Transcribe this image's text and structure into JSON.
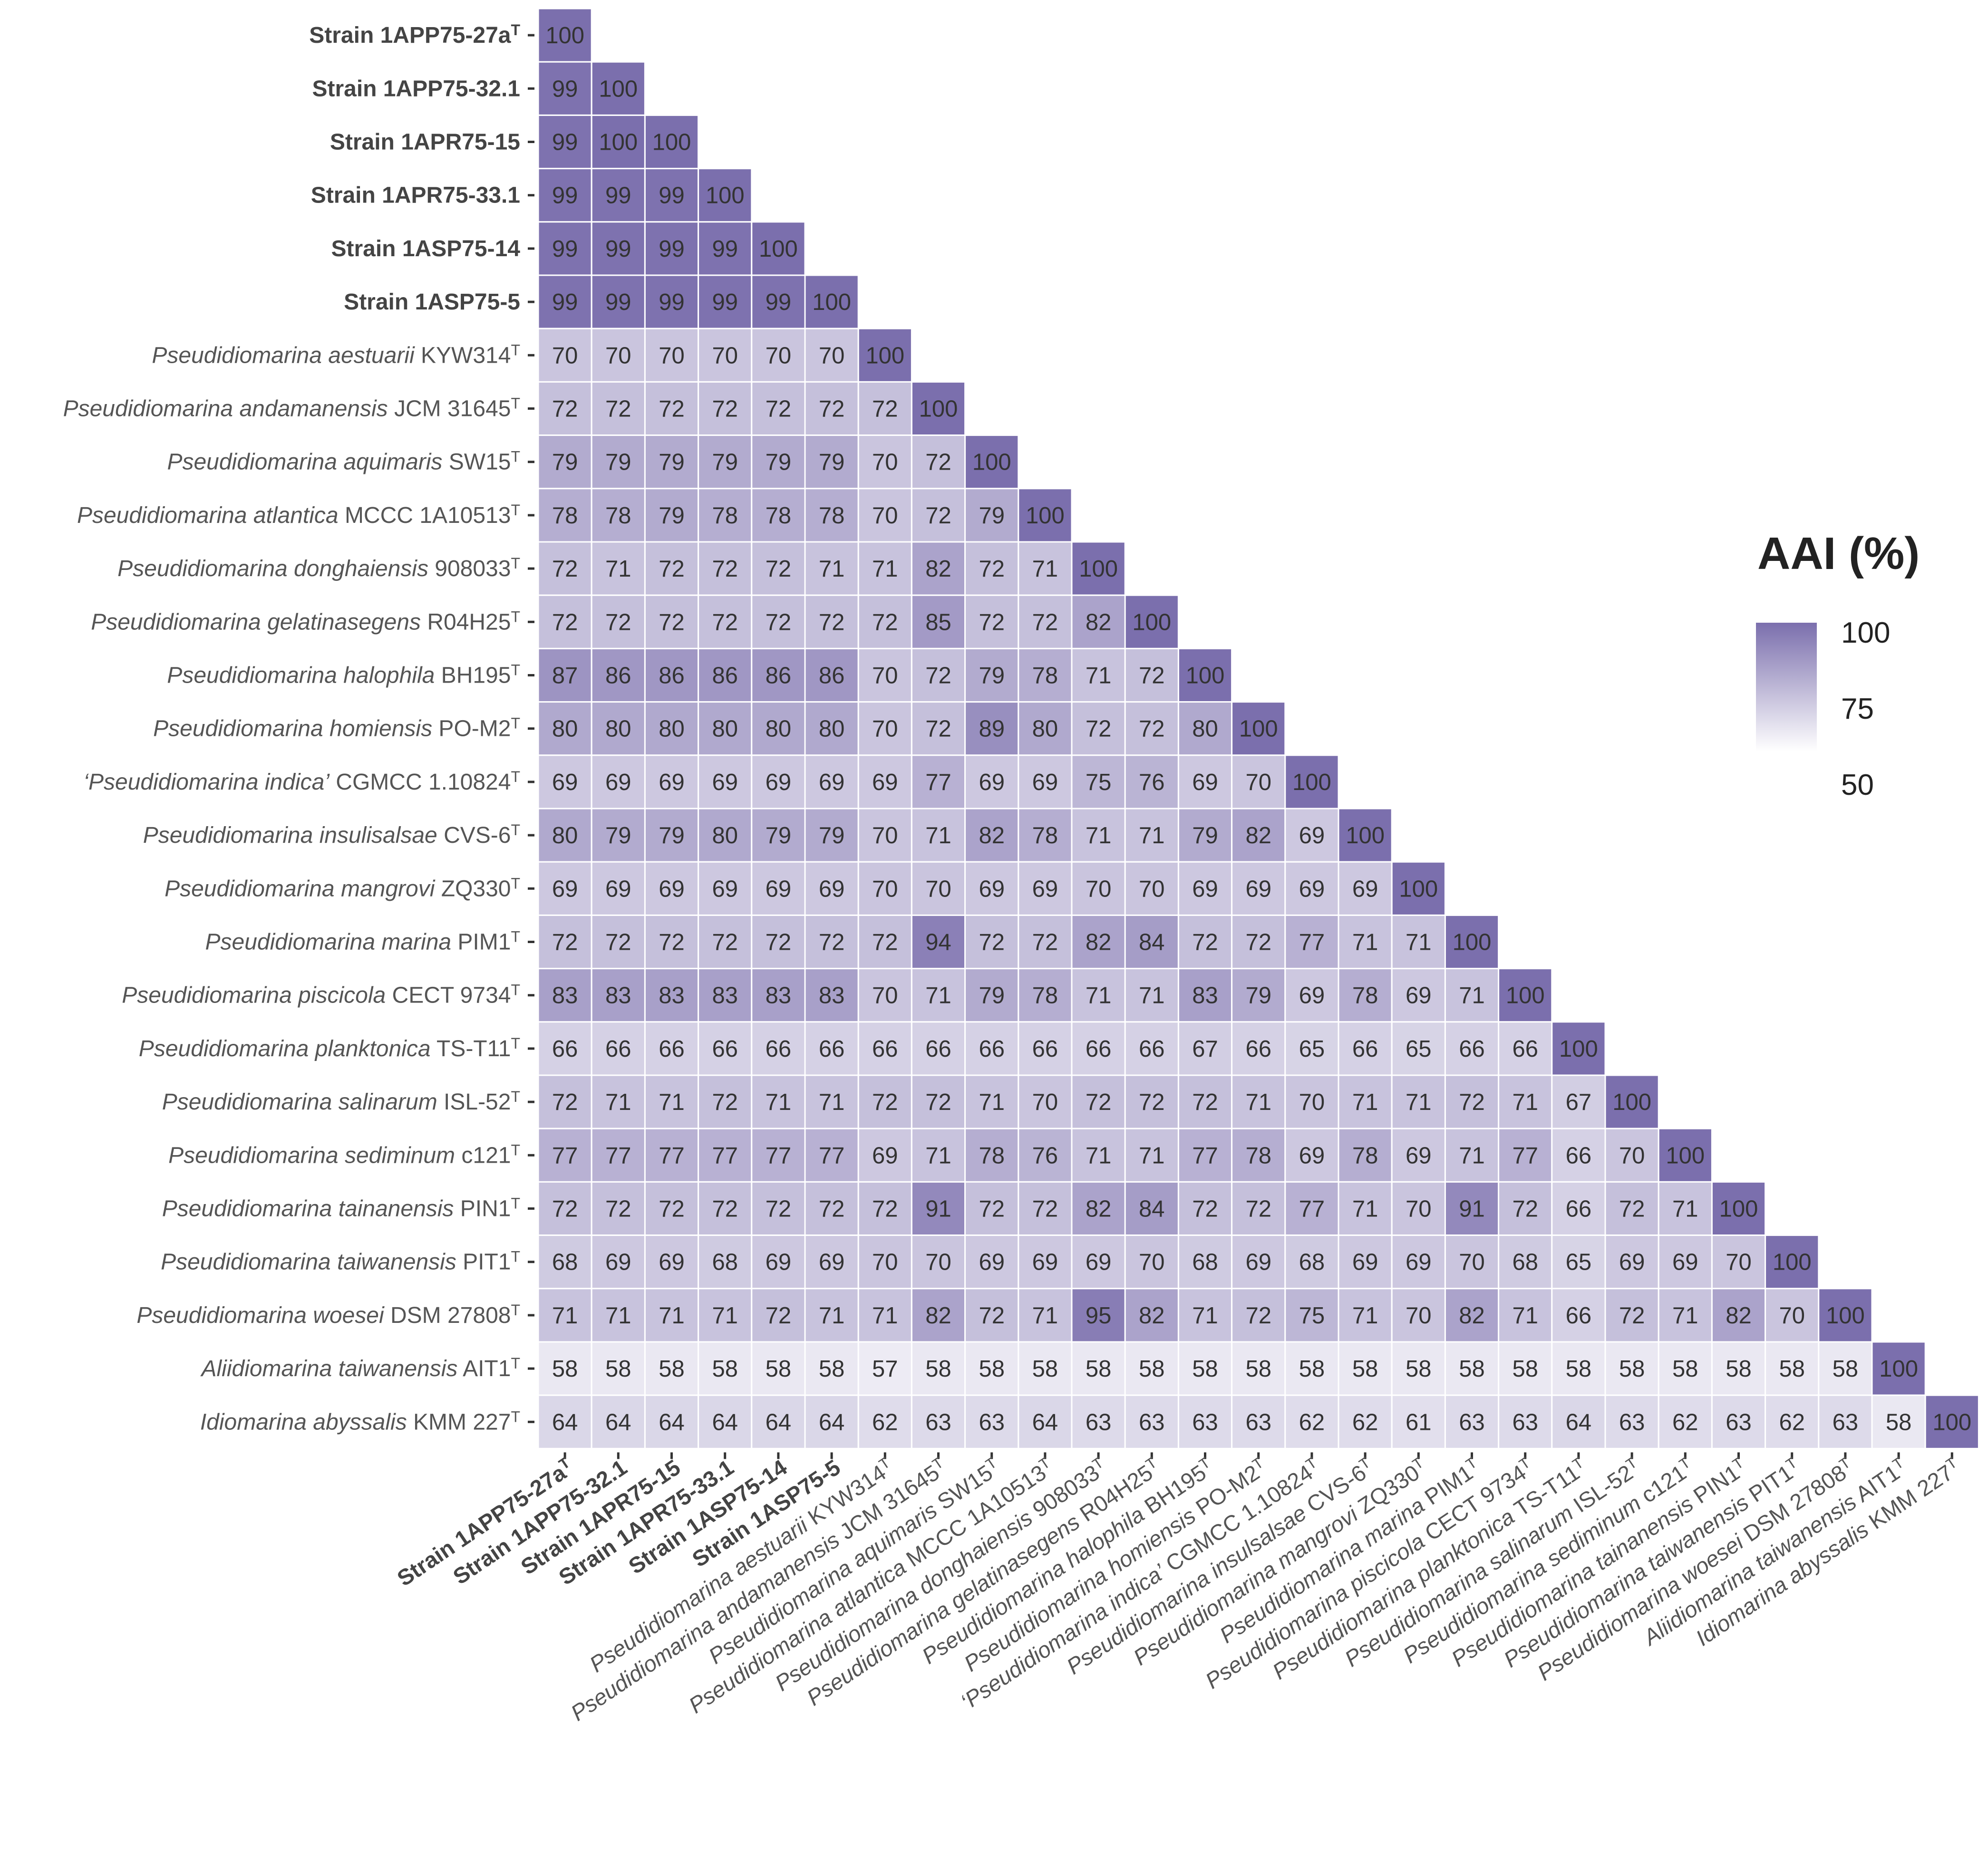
{
  "chart_data": {
    "type": "heatmap",
    "title": "",
    "xlabel": "",
    "ylabel": "",
    "legend": {
      "title": "AAI (%)",
      "ticks": [
        "100",
        "75",
        "50"
      ],
      "range": [
        50,
        100
      ],
      "low_color": "#ffffff",
      "high_color": "#7b6fad",
      "position": "right"
    },
    "taxa": [
      {
        "italic": "",
        "pre": "Strain 1APP75-27a",
        "sup": "T",
        "post": "",
        "strain": true
      },
      {
        "italic": "",
        "pre": "Strain 1APP75-32.1",
        "sup": "",
        "post": "",
        "strain": true
      },
      {
        "italic": "",
        "pre": "Strain  1APR75-15",
        "sup": "",
        "post": "",
        "strain": true
      },
      {
        "italic": "",
        "pre": "Strain 1APR75-33.1",
        "sup": "",
        "post": "",
        "strain": true
      },
      {
        "italic": "",
        "pre": "Strain  1ASP75-14",
        "sup": "",
        "post": "",
        "strain": true
      },
      {
        "italic": "",
        "pre": "Strain 1ASP75-5",
        "sup": "",
        "post": "",
        "strain": true
      },
      {
        "italic": "Pseudidiomarina aestuarii",
        "pre": " KYW314",
        "sup": "T",
        "post": "",
        "strain": false
      },
      {
        "italic": "Pseudidiomarina andamanensis",
        "pre": " JCM 31645",
        "sup": "T",
        "post": "",
        "strain": false
      },
      {
        "italic": "Pseudidiomarina aquimaris",
        "pre": " SW15",
        "sup": "T",
        "post": "",
        "strain": false
      },
      {
        "italic": "Pseudidiomarina atlantica",
        "pre": " MCCC 1A10513",
        "sup": "T",
        "post": "",
        "strain": false
      },
      {
        "italic": "Pseudidiomarina donghaiensis",
        "pre": " 908033",
        "sup": "T",
        "post": "",
        "strain": false
      },
      {
        "italic": "Pseudidiomarina gelatinasegens",
        "pre": " R04H25",
        "sup": "T",
        "post": "",
        "strain": false
      },
      {
        "italic": "Pseudidiomarina halophila",
        "pre": " BH195",
        "sup": "T",
        "post": "",
        "strain": false
      },
      {
        "italic": "Pseudidiomarina homiensis",
        "pre": " PO-M2",
        "sup": "T",
        "post": "",
        "strain": false
      },
      {
        "italic": "‘Pseudidiomarina indica’",
        "pre": " CGMCC 1.10824",
        "sup": "T",
        "post": "",
        "strain": false
      },
      {
        "italic": "Pseudidiomarina insulisalsae",
        "pre": " CVS-6",
        "sup": "T",
        "post": "",
        "strain": false
      },
      {
        "italic": "Pseudidiomarina mangrovi",
        "pre": " ZQ330",
        "sup": "T",
        "post": "",
        "strain": false
      },
      {
        "italic": "Pseudidiomarina marina",
        "pre": " PIM1",
        "sup": "T",
        "post": "",
        "strain": false
      },
      {
        "italic": "Pseudidiomarina piscicola",
        "pre": " CECT 9734",
        "sup": "T",
        "post": "",
        "strain": false
      },
      {
        "italic": "Pseudidiomarina planktonica",
        "pre": " TS-T11",
        "sup": "T",
        "post": "",
        "strain": false
      },
      {
        "italic": "Pseudidiomarina salinarum",
        "pre": " ISL-52",
        "sup": "T",
        "post": "",
        "strain": false
      },
      {
        "italic": "Pseudidiomarina sediminum",
        "pre": " c121",
        "sup": "T",
        "post": "",
        "strain": false
      },
      {
        "italic": "Pseudidiomarina tainanensis",
        "pre": " PIN1",
        "sup": "T",
        "post": "",
        "strain": false
      },
      {
        "italic": "Pseudidiomarina taiwanensis",
        "pre": " PIT1",
        "sup": "T",
        "post": "",
        "strain": false
      },
      {
        "italic": "Pseudidiomarina woesei",
        "pre": " DSM 27808",
        "sup": "T",
        "post": "",
        "strain": false
      },
      {
        "italic": "Aliidiomarina taiwanensis",
        "pre": " AIT1",
        "sup": "T",
        "post": "",
        "strain": false
      },
      {
        "italic": "Idiomarina abyssalis",
        "pre": " KMM 227",
        "sup": "T",
        "post": "",
        "strain": false
      }
    ],
    "col_labels": [
      {
        "italic": "",
        "pre": "Strain 1APP75-27a",
        "sup": "T",
        "post": "",
        "strain": true
      },
      {
        "italic": "",
        "pre": "Strain 1APP75-32.1",
        "sup": "",
        "post": "",
        "strain": true
      },
      {
        "italic": "",
        "pre": "Strain 1APR75-15",
        "sup": "",
        "post": "",
        "strain": true
      },
      {
        "italic": "",
        "pre": "Strain 1APR75-33.1",
        "sup": "",
        "post": "",
        "strain": true
      },
      {
        "italic": "",
        "pre": "Strain 1ASP75-14",
        "sup": "",
        "post": "",
        "strain": true
      },
      {
        "italic": "",
        "pre": "Strain 1ASP75-5",
        "sup": "",
        "post": "",
        "strain": true
      },
      {
        "italic": "Pseudidiomarina aestuarii",
        "pre": " KYW314",
        "sup": "T",
        "post": "",
        "strain": false
      },
      {
        "italic": "Pseudidiomarina andamanensis",
        "pre": " JCM 31645",
        "sup": "T",
        "post": "",
        "strain": false
      },
      {
        "italic": "Pseudidiomarina aquimaris",
        "pre": " SW15",
        "sup": "T",
        "post": "",
        "strain": false
      },
      {
        "italic": "Pseudidiomarina atlantica",
        "pre": " MCCC 1A10513",
        "sup": "T",
        "post": "",
        "strain": false
      },
      {
        "italic": "Pseudidiomarina donghaiensis",
        "pre": " 908033",
        "sup": "T",
        "post": "",
        "strain": false
      },
      {
        "italic": "Pseudidiomarina gelatinasegens",
        "pre": " R04H25",
        "sup": "T",
        "post": "",
        "strain": false
      },
      {
        "italic": "Pseudidiomarina halophila",
        "pre": " BH195",
        "sup": "T",
        "post": "",
        "strain": false
      },
      {
        "italic": "Pseudidiomarina homiensis",
        "pre": " PO-M2",
        "sup": "T",
        "post": "",
        "strain": false
      },
      {
        "italic": "‘Pseudidiomarina indica’",
        "pre": " CGMCC 1.10824",
        "sup": "T",
        "post": "",
        "strain": false
      },
      {
        "italic": "Pseudidiomarina insulsalsae",
        "pre": " CVS-6",
        "sup": "T",
        "post": "",
        "strain": false
      },
      {
        "italic": "Pseudidiomarina mangrovi",
        "pre": " ZQ330",
        "sup": "T",
        "post": "",
        "strain": false
      },
      {
        "italic": "Pseudidiomarina marina",
        "pre": " PIM1",
        "sup": "T",
        "post": "",
        "strain": false
      },
      {
        "italic": "Pseudidiomarina piscicola",
        "pre": " CECT 9734",
        "sup": "T",
        "post": "",
        "strain": false
      },
      {
        "italic": "Pseudidiomarina planktonica",
        "pre": " TS-T11",
        "sup": "T",
        "post": "",
        "strain": false
      },
      {
        "italic": "Pseudidiomarina salinarum",
        "pre": " ISL-52",
        "sup": "T",
        "post": "",
        "strain": false
      },
      {
        "italic": "Pseudidiomarina sediminum",
        "pre": " c121",
        "sup": "T",
        "post": "",
        "strain": false
      },
      {
        "italic": "Pseudidiomarina tainanensis",
        "pre": " PIN1",
        "sup": "T",
        "post": "",
        "strain": false
      },
      {
        "italic": "Pseudidiomarina taiwanensis",
        "pre": " PIT1",
        "sup": "T",
        "post": "",
        "strain": false
      },
      {
        "italic": "Pseudidiomarina woesei",
        "pre": " DSM 27808",
        "sup": "T",
        "post": "",
        "strain": false
      },
      {
        "italic": "Aliidiomarina taiwanensis",
        "pre": " AIT1",
        "sup": "T",
        "post": "",
        "strain": false
      },
      {
        "italic": "Idiomarina abyssalis",
        "pre": " KMM 227",
        "sup": "T",
        "post": "",
        "strain": false
      }
    ],
    "values": [
      [
        100
      ],
      [
        99,
        100
      ],
      [
        99,
        100,
        100
      ],
      [
        99,
        99,
        99,
        100
      ],
      [
        99,
        99,
        99,
        99,
        100
      ],
      [
        99,
        99,
        99,
        99,
        99,
        100
      ],
      [
        70,
        70,
        70,
        70,
        70,
        70,
        100
      ],
      [
        72,
        72,
        72,
        72,
        72,
        72,
        72,
        100
      ],
      [
        79,
        79,
        79,
        79,
        79,
        79,
        70,
        72,
        100
      ],
      [
        78,
        78,
        79,
        78,
        78,
        78,
        70,
        72,
        79,
        100
      ],
      [
        72,
        71,
        72,
        72,
        72,
        71,
        71,
        82,
        72,
        71,
        100
      ],
      [
        72,
        72,
        72,
        72,
        72,
        72,
        72,
        85,
        72,
        72,
        82,
        100
      ],
      [
        87,
        86,
        86,
        86,
        86,
        86,
        70,
        72,
        79,
        78,
        71,
        72,
        100
      ],
      [
        80,
        80,
        80,
        80,
        80,
        80,
        70,
        72,
        89,
        80,
        72,
        72,
        80,
        100
      ],
      [
        69,
        69,
        69,
        69,
        69,
        69,
        69,
        77,
        69,
        69,
        75,
        76,
        69,
        70,
        100
      ],
      [
        80,
        79,
        79,
        80,
        79,
        79,
        70,
        71,
        82,
        78,
        71,
        71,
        79,
        82,
        69,
        100
      ],
      [
        69,
        69,
        69,
        69,
        69,
        69,
        70,
        70,
        69,
        69,
        70,
        70,
        69,
        69,
        69,
        69,
        100
      ],
      [
        72,
        72,
        72,
        72,
        72,
        72,
        72,
        94,
        72,
        72,
        82,
        84,
        72,
        72,
        77,
        71,
        71,
        100
      ],
      [
        83,
        83,
        83,
        83,
        83,
        83,
        70,
        71,
        79,
        78,
        71,
        71,
        83,
        79,
        69,
        78,
        69,
        71,
        100
      ],
      [
        66,
        66,
        66,
        66,
        66,
        66,
        66,
        66,
        66,
        66,
        66,
        66,
        67,
        66,
        65,
        66,
        65,
        66,
        66,
        100
      ],
      [
        72,
        71,
        71,
        72,
        71,
        71,
        72,
        72,
        71,
        70,
        72,
        72,
        72,
        71,
        70,
        71,
        71,
        72,
        71,
        67,
        100
      ],
      [
        77,
        77,
        77,
        77,
        77,
        77,
        69,
        71,
        78,
        76,
        71,
        71,
        77,
        78,
        69,
        78,
        69,
        71,
        77,
        66,
        70,
        100
      ],
      [
        72,
        72,
        72,
        72,
        72,
        72,
        72,
        91,
        72,
        72,
        82,
        84,
        72,
        72,
        77,
        71,
        70,
        91,
        72,
        66,
        72,
        71,
        100
      ],
      [
        68,
        69,
        69,
        68,
        69,
        69,
        70,
        70,
        69,
        69,
        69,
        70,
        68,
        69,
        68,
        69,
        69,
        70,
        68,
        65,
        69,
        69,
        70,
        100
      ],
      [
        71,
        71,
        71,
        71,
        72,
        71,
        71,
        82,
        72,
        71,
        95,
        82,
        71,
        72,
        75,
        71,
        70,
        82,
        71,
        66,
        72,
        71,
        82,
        70,
        100
      ],
      [
        58,
        58,
        58,
        58,
        58,
        58,
        57,
        58,
        58,
        58,
        58,
        58,
        58,
        58,
        58,
        58,
        58,
        58,
        58,
        58,
        58,
        58,
        58,
        58,
        58,
        100
      ],
      [
        64,
        64,
        64,
        64,
        64,
        64,
        62,
        63,
        63,
        64,
        63,
        63,
        63,
        63,
        62,
        62,
        61,
        63,
        63,
        64,
        63,
        62,
        63,
        62,
        63,
        58,
        100
      ]
    ]
  }
}
